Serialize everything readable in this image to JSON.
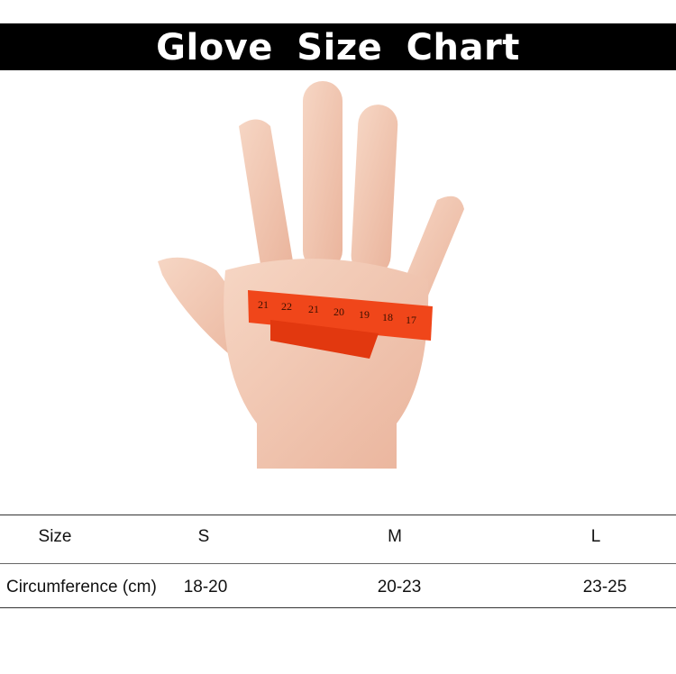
{
  "title": "Glove  Size  Chart",
  "image": {
    "icon": "hand-with-measuring-tape-illustration",
    "tape_color": "#f0461a",
    "tape_numbers": [
      "21",
      "22",
      "21",
      "20",
      "19",
      "18",
      "17"
    ]
  },
  "table": {
    "headers": [
      "Size",
      "S",
      "M",
      "L"
    ],
    "rows": [
      {
        "label": "Circumference (cm)",
        "values": [
          "18-20",
          "20-23",
          "23-25"
        ]
      }
    ]
  }
}
